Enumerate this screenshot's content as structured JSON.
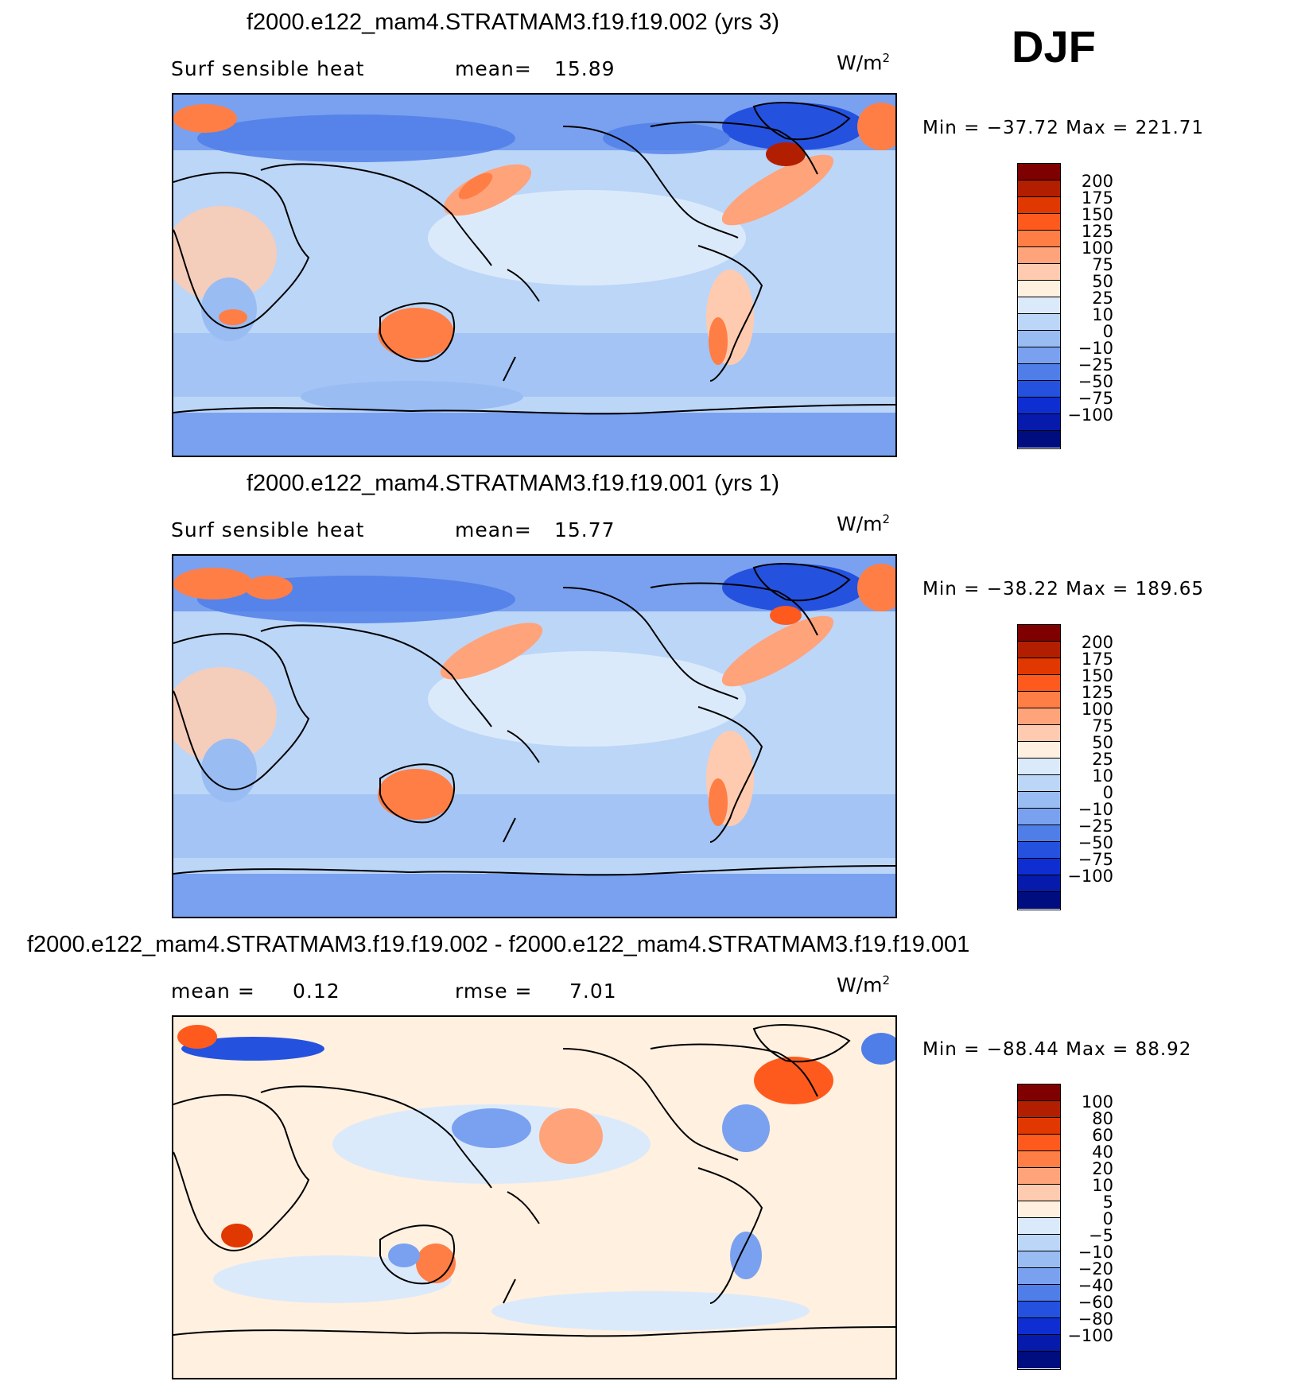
{
  "season": "DJF",
  "units_base": "W/m",
  "units_sup": "2",
  "panels": [
    {
      "id": "case",
      "title": "f2000.e122_mam4.STRATMAM3.f19.f19.002 (yrs 3)",
      "left_label": "Surf sensible heat",
      "stat_label": "mean=",
      "stat_value": "15.89",
      "minmax_text": "Min = −37.72  Max = 221.71",
      "colorbar": {
        "colors": [
          "#7f0000",
          "#b21f00",
          "#e13700",
          "#ff5a1e",
          "#ff7e46",
          "#ffa37b",
          "#ffcbb0",
          "#fff0e0",
          "#dbeafb",
          "#bcd6f8",
          "#99bcf3",
          "#7aa1ef",
          "#4f7ee8",
          "#2551df",
          "#0f2ed2",
          "#061bac",
          "#000d7e"
        ],
        "ticks": [
          "200",
          "175",
          "150",
          "125",
          "100",
          "75",
          "50",
          "25",
          "10",
          "0",
          "−10",
          "−25",
          "−50",
          "−75",
          "−100"
        ]
      }
    },
    {
      "id": "control",
      "title": "f2000.e122_mam4.STRATMAM3.f19.f19.001 (yrs 1)",
      "left_label": "Surf sensible heat",
      "stat_label": "mean=",
      "stat_value": "15.77",
      "minmax_text": "Min = −38.22  Max = 189.65",
      "colorbar": {
        "colors": [
          "#7f0000",
          "#b21f00",
          "#e13700",
          "#ff5a1e",
          "#ff7e46",
          "#ffa37b",
          "#ffcbb0",
          "#fff0e0",
          "#dbeafb",
          "#bcd6f8",
          "#99bcf3",
          "#7aa1ef",
          "#4f7ee8",
          "#2551df",
          "#0f2ed2",
          "#061bac",
          "#000d7e"
        ],
        "ticks": [
          "200",
          "175",
          "150",
          "125",
          "100",
          "75",
          "50",
          "25",
          "10",
          "0",
          "−10",
          "−25",
          "−50",
          "−75",
          "−100"
        ]
      }
    },
    {
      "id": "diff",
      "title": "f2000.e122_mam4.STRATMAM3.f19.f19.002 - f2000.e122_mam4.STRATMAM3.f19.f19.001",
      "left_label": "mean =",
      "left_value": "0.12",
      "stat_label": "rmse =",
      "stat_value": "7.01",
      "minmax_text": "Min = −88.44  Max =   88.92",
      "colorbar": {
        "colors": [
          "#7f0000",
          "#b21f00",
          "#e13700",
          "#ff5a1e",
          "#ff7e46",
          "#ffa37b",
          "#ffcbb0",
          "#fff0e0",
          "#dbeafb",
          "#bcd6f8",
          "#99bcf3",
          "#7aa1ef",
          "#4f7ee8",
          "#2551df",
          "#0f2ed2",
          "#061bac",
          "#000d7e"
        ],
        "ticks": [
          "100",
          "80",
          "60",
          "40",
          "20",
          "10",
          "5",
          "0",
          "−5",
          "−10",
          "−20",
          "−40",
          "−60",
          "−80",
          "−100"
        ]
      }
    }
  ]
}
